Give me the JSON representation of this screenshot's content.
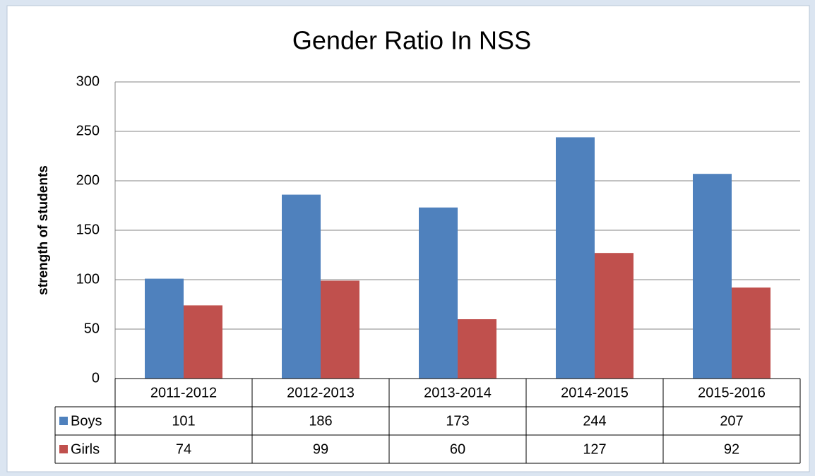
{
  "chart_data": {
    "type": "bar",
    "title": "Gender Ratio In NSS",
    "y_label": "strength of students",
    "categories": [
      "2011-2012",
      "2012-2013",
      "2013-2014",
      "2014-2015",
      "2015-2016"
    ],
    "series": [
      {
        "name": "Boys",
        "color": "#4f81bd",
        "values": [
          101,
          186,
          173,
          244,
          207
        ]
      },
      {
        "name": "Girls",
        "color": "#c0504d",
        "values": [
          74,
          99,
          60,
          127,
          92
        ]
      }
    ],
    "ylim": [
      0,
      300
    ],
    "yticks": [
      0,
      50,
      100,
      150,
      200,
      250,
      300
    ],
    "grid": true
  }
}
